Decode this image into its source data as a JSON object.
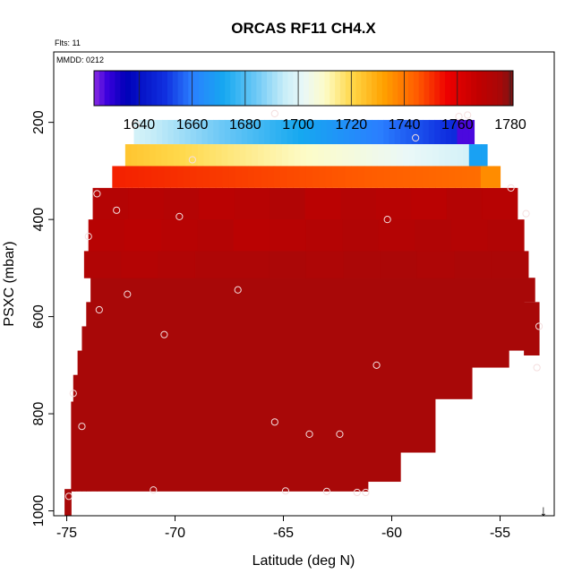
{
  "chart_data": {
    "type": "heatmap",
    "title": "ORCAS RF11 CH4.X",
    "flights_label": "Flts: 11",
    "date_label": "MMDD: 0212",
    "xlabel": "Latitude (deg N)",
    "ylabel": "PSXC (mbar)",
    "xlim": [
      -75.6,
      -52.5
    ],
    "ylim": [
      1010,
      55
    ],
    "x_ticks": [
      -75,
      -70,
      -65,
      -60,
      -55
    ],
    "x_tick_labels": [
      "-75",
      "-70",
      "-65",
      "-60",
      "-55"
    ],
    "y_ticks": [
      200,
      400,
      600,
      800,
      1000
    ],
    "y_tick_labels": [
      "200",
      "400",
      "600",
      "800",
      "1000"
    ],
    "colorbar": {
      "min": 1623,
      "max": 1781,
      "ticks": [
        1640,
        1660,
        1680,
        1700,
        1720,
        1740,
        1760,
        1780
      ],
      "tick_labels": [
        "1640",
        "1660",
        "1680",
        "1700",
        "1720",
        "1740",
        "1760",
        "1780"
      ],
      "stops": [
        {
          "v": 1623,
          "c": "#8a2be2"
        },
        {
          "v": 1628,
          "c": "#3b00dd"
        },
        {
          "v": 1635,
          "c": "#0000b8"
        },
        {
          "v": 1650,
          "c": "#1030e0"
        },
        {
          "v": 1660,
          "c": "#2a7fff"
        },
        {
          "v": 1672,
          "c": "#16a8f0"
        },
        {
          "v": 1684,
          "c": "#6cc8f6"
        },
        {
          "v": 1695,
          "c": "#c9eef8"
        },
        {
          "v": 1702,
          "c": "#eaf8f8"
        },
        {
          "v": 1710,
          "c": "#fdfcc8"
        },
        {
          "v": 1720,
          "c": "#ffd84a"
        },
        {
          "v": 1732,
          "c": "#ffa200"
        },
        {
          "v": 1745,
          "c": "#ff5a00"
        },
        {
          "v": 1756,
          "c": "#ee0000"
        },
        {
          "v": 1768,
          "c": "#c00000"
        },
        {
          "v": 1776,
          "c": "#a80808"
        },
        {
          "v": 1781,
          "c": "#7a1414"
        }
      ]
    },
    "gradient_layers": [
      {
        "p_top": 195,
        "p_bot": 245,
        "x_start": -71.9,
        "x_end": -56.2,
        "v_start": 1697,
        "v_end": 1646,
        "v_last": 1627
      },
      {
        "p_top": 245,
        "p_bot": 290,
        "x_start": -72.3,
        "x_end": -55.6,
        "v_start": 1724,
        "v_end": 1696,
        "v_last": 1670
      },
      {
        "p_top": 290,
        "p_bot": 335,
        "x_start": -72.9,
        "x_end": -55.0,
        "v_start": 1752,
        "v_end": 1741,
        "v_last": 1736
      }
    ],
    "upper_brown_layers": [
      {
        "p_top": 335,
        "p_bot": 400,
        "x_start": -73.8,
        "x_end": -54.2,
        "values": [
          1772,
          1771,
          1772,
          1770,
          1771,
          1773,
          1770,
          1772,
          1771,
          1770,
          1772,
          1771
        ]
      },
      {
        "p_top": 400,
        "p_bot": 465,
        "x_start": -74.0,
        "x_end": -53.9,
        "values": [
          1771,
          1770,
          1771,
          1772,
          1770,
          1771,
          1772,
          1773,
          1772,
          1773,
          1772,
          1773
        ]
      },
      {
        "p_top": 465,
        "p_bot": 520,
        "x_start": -74.2,
        "x_end": -53.7,
        "values": [
          1773,
          1772,
          1773,
          1774,
          1774,
          1775,
          1774,
          1775,
          1775,
          1774,
          1775,
          1775
        ]
      }
    ],
    "column_cells": [
      {
        "x0": -74.8,
        "x1": -74.6,
        "p_top": 775,
        "p_bot": 960,
        "v": 1776
      },
      {
        "x0": -74.7,
        "x1": -74.5,
        "p_top": 720,
        "p_bot": 960,
        "v": 1776
      },
      {
        "x0": -74.5,
        "x1": -74.3,
        "p_top": 670,
        "p_bot": 960,
        "v": 1776
      },
      {
        "x0": -74.3,
        "x1": -74.1,
        "p_top": 620,
        "p_bot": 960,
        "v": 1776
      },
      {
        "x0": -74.1,
        "x1": -73.9,
        "p_top": 570,
        "p_bot": 960,
        "v": 1776
      },
      {
        "x0": -73.9,
        "x1": -73.6,
        "p_top": 520,
        "p_bot": 960,
        "v": 1776
      },
      {
        "x0": -73.6,
        "x1": -61.1,
        "p_top": 520,
        "p_bot": 960,
        "v": 1776
      },
      {
        "x0": -61.1,
        "x1": -59.6,
        "p_top": 520,
        "p_bot": 940,
        "v": 1776
      },
      {
        "x0": -59.6,
        "x1": -58.0,
        "p_top": 520,
        "p_bot": 880,
        "v": 1776
      },
      {
        "x0": -58.0,
        "x1": -56.3,
        "p_top": 520,
        "p_bot": 770,
        "v": 1776
      },
      {
        "x0": -56.3,
        "x1": -54.6,
        "p_top": 520,
        "p_bot": 705,
        "v": 1776
      },
      {
        "x0": -54.6,
        "x1": -53.9,
        "p_top": 520,
        "p_bot": 670,
        "v": 1776
      },
      {
        "x0": -53.9,
        "x1": -53.4,
        "p_top": 520,
        "p_bot": 570,
        "v": 1776
      },
      {
        "x0": -53.9,
        "x1": -53.2,
        "p_top": 570,
        "p_bot": 680,
        "v": 1776
      },
      {
        "x0": -75.1,
        "x1": -74.8,
        "p_top": 955,
        "p_bot": 1010,
        "v": 1776
      }
    ],
    "points": [
      {
        "x": -71.8,
        "y": 204
      },
      {
        "x": -65.4,
        "y": 182
      },
      {
        "x": -56.9,
        "y": 188
      },
      {
        "x": -56.5,
        "y": 185
      },
      {
        "x": -58.9,
        "y": 232
      },
      {
        "x": -69.2,
        "y": 277
      },
      {
        "x": -54.5,
        "y": 335
      },
      {
        "x": -73.6,
        "y": 347
      },
      {
        "x": -72.7,
        "y": 381
      },
      {
        "x": -69.8,
        "y": 394
      },
      {
        "x": -60.2,
        "y": 400
      },
      {
        "x": -53.8,
        "y": 388
      },
      {
        "x": -74.0,
        "y": 435
      },
      {
        "x": -67.1,
        "y": 545
      },
      {
        "x": -72.2,
        "y": 554
      },
      {
        "x": -73.5,
        "y": 586
      },
      {
        "x": -70.5,
        "y": 637
      },
      {
        "x": -53.2,
        "y": 620
      },
      {
        "x": -60.7,
        "y": 700
      },
      {
        "x": -53.3,
        "y": 705
      },
      {
        "x": -74.7,
        "y": 758
      },
      {
        "x": -74.3,
        "y": 826
      },
      {
        "x": -65.4,
        "y": 817
      },
      {
        "x": -63.8,
        "y": 842
      },
      {
        "x": -62.4,
        "y": 842
      },
      {
        "x": -71.0,
        "y": 957
      },
      {
        "x": -64.9,
        "y": 959
      },
      {
        "x": -63.0,
        "y": 960
      },
      {
        "x": -61.6,
        "y": 962
      },
      {
        "x": -61.2,
        "y": 962
      },
      {
        "x": -74.9,
        "y": 970
      }
    ],
    "arrow_marker": {
      "x": -53.0,
      "symbol": "↓"
    }
  }
}
